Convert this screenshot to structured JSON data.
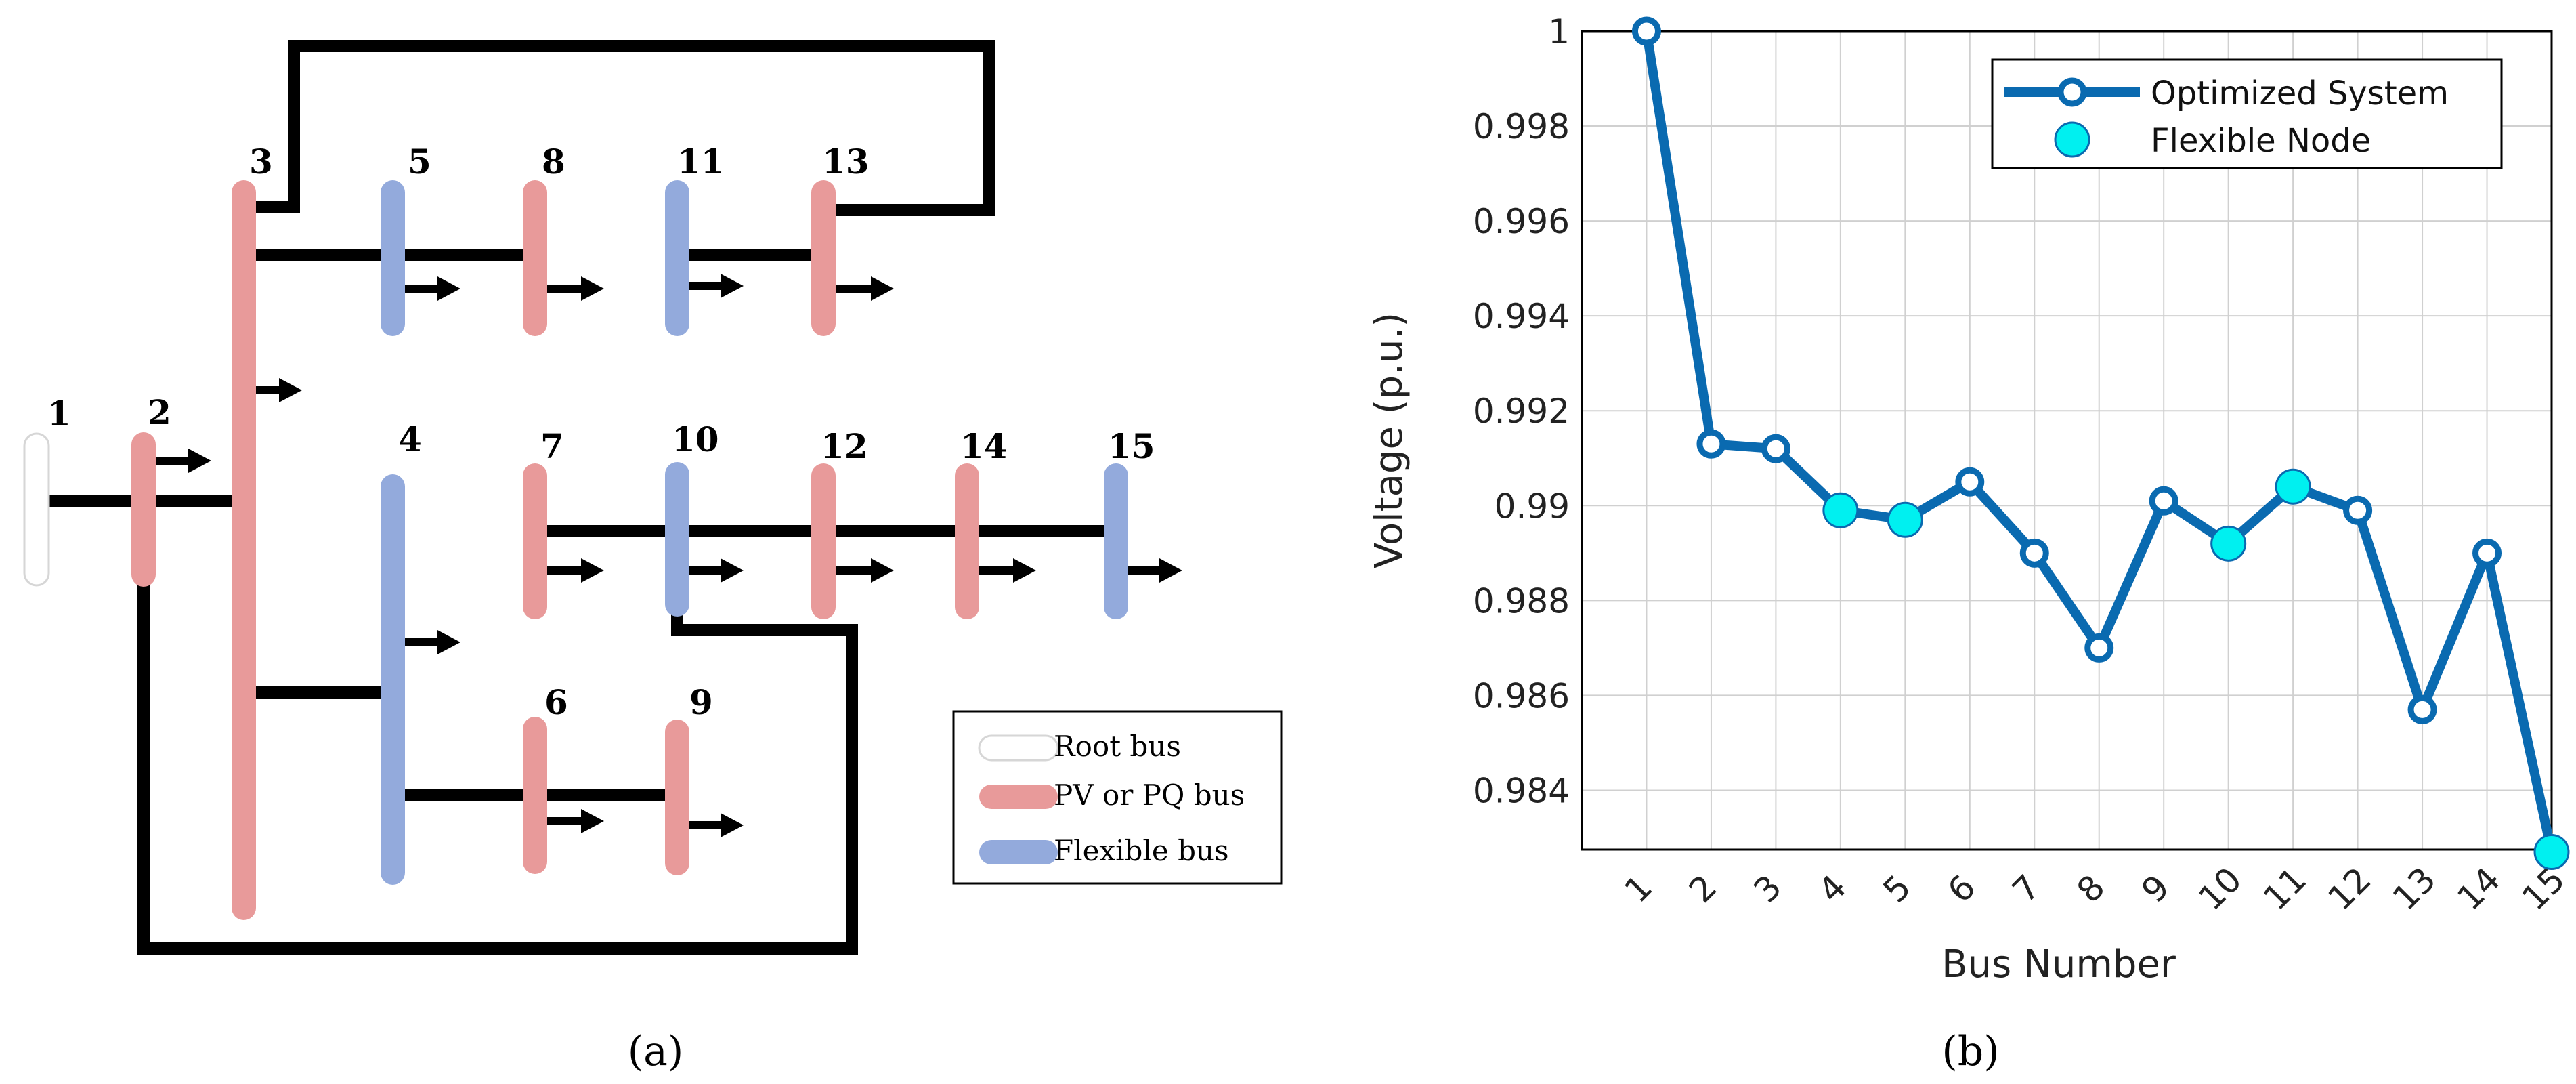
{
  "diagram": {
    "caption": "(a)",
    "buses": [
      {
        "id": "1",
        "label": "1",
        "type": "root"
      },
      {
        "id": "2",
        "label": "2",
        "type": "pvpq"
      },
      {
        "id": "3",
        "label": "3",
        "type": "pvpq"
      },
      {
        "id": "4",
        "label": "4",
        "type": "flexible"
      },
      {
        "id": "5",
        "label": "5",
        "type": "flexible"
      },
      {
        "id": "6",
        "label": "6",
        "type": "pvpq"
      },
      {
        "id": "7",
        "label": "7",
        "type": "pvpq"
      },
      {
        "id": "8",
        "label": "8",
        "type": "pvpq"
      },
      {
        "id": "9",
        "label": "9",
        "type": "pvpq"
      },
      {
        "id": "10",
        "label": "10",
        "type": "flexible"
      },
      {
        "id": "11",
        "label": "11",
        "type": "flexible"
      },
      {
        "id": "12",
        "label": "12",
        "type": "pvpq"
      },
      {
        "id": "13",
        "label": "13",
        "type": "pvpq"
      },
      {
        "id": "14",
        "label": "14",
        "type": "pvpq"
      },
      {
        "id": "15",
        "label": "15",
        "type": "flexible"
      }
    ],
    "legend": [
      {
        "label": "Root bus",
        "type": "root"
      },
      {
        "label": "PV or PQ bus",
        "type": "pvpq"
      },
      {
        "label": "Flexible bus",
        "type": "flexible"
      }
    ],
    "colors": {
      "root": "#ffffff",
      "pvpq": "#e89a9a",
      "flexible": "#93aadc",
      "line": "#000000"
    }
  },
  "chart_data": {
    "type": "line",
    "caption": "(b)",
    "xlabel": "Bus Number",
    "ylabel": "Voltage (p.u.)",
    "categories": [
      "1",
      "2",
      "3",
      "4",
      "5",
      "6",
      "7",
      "8",
      "9",
      "10",
      "11",
      "12",
      "13",
      "14",
      "15"
    ],
    "x": [
      1,
      2,
      3,
      4,
      5,
      6,
      7,
      8,
      9,
      10,
      11,
      12,
      13,
      14,
      15
    ],
    "series": [
      {
        "name": "Optimized System",
        "values": [
          1.0,
          0.9913,
          0.9912,
          0.9899,
          0.9897,
          0.9905,
          0.989,
          0.987,
          0.9901,
          0.9892,
          0.9904,
          0.9899,
          0.9857,
          0.989,
          0.9827
        ],
        "color": "#0a6ab0"
      }
    ],
    "flexible_nodes": {
      "name": "Flexible Node",
      "x": [
        4,
        5,
        10,
        11,
        15
      ],
      "color": "#00f0f0"
    },
    "yticks": [
      "0.984",
      "0.986",
      "0.988",
      "0.99",
      "0.992",
      "0.994",
      "0.996",
      "0.998",
      "1"
    ],
    "ytick_values": [
      0.984,
      0.986,
      0.988,
      0.99,
      0.992,
      0.994,
      0.996,
      0.998,
      1.0
    ],
    "ylim": [
      0.98275,
      1.0
    ],
    "xlim": [
      0,
      15
    ],
    "grid": true,
    "legend_position": "top-right"
  }
}
